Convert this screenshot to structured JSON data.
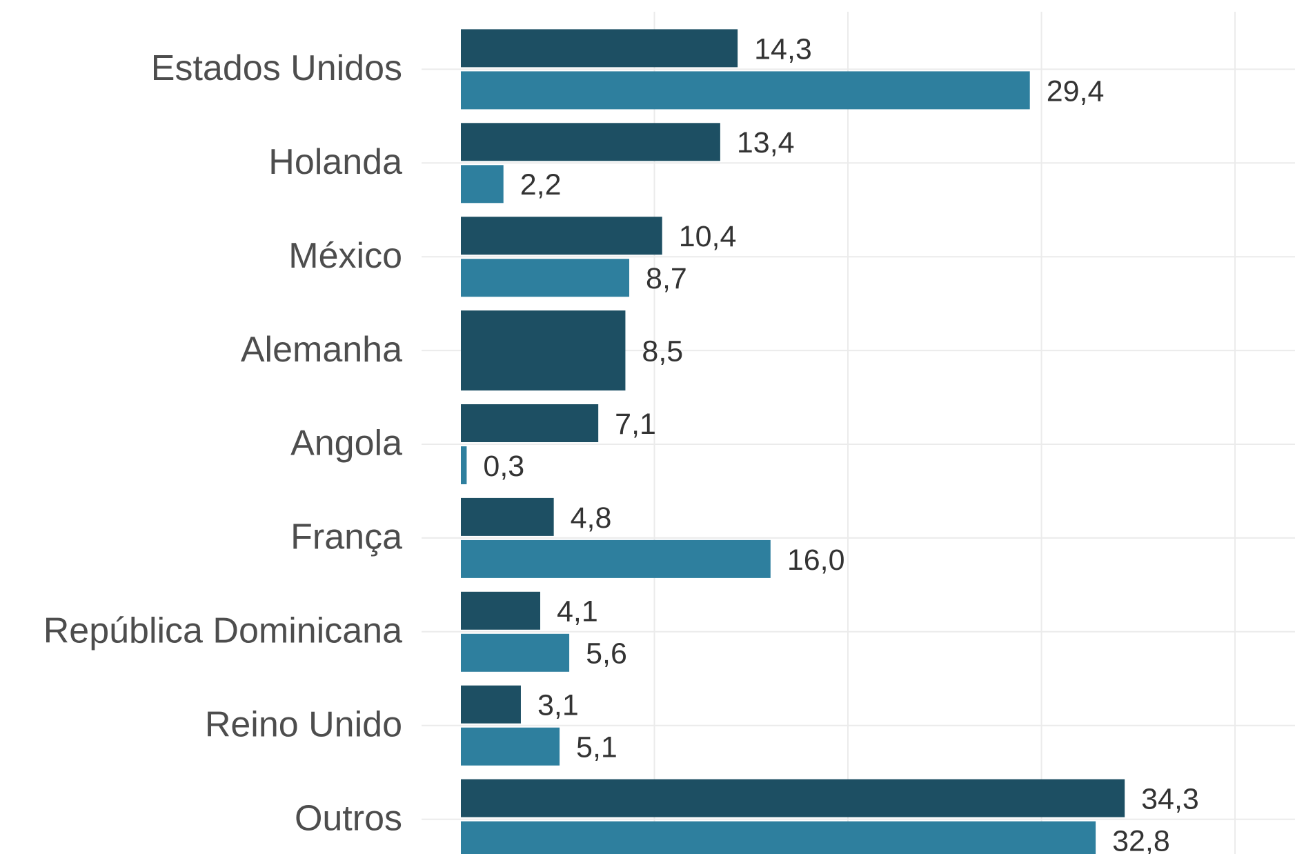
{
  "chart_data": {
    "type": "bar",
    "orientation": "horizontal",
    "categories": [
      "Estados Unidos",
      "Holanda",
      "México",
      "Alemanha",
      "Angola",
      "França",
      "República Dominicana",
      "Reino Unido",
      "Outros"
    ],
    "series": [
      {
        "color": "#1d4f63",
        "values": [
          14.3,
          13.4,
          10.4,
          8.5,
          7.1,
          4.8,
          4.1,
          3.1,
          34.3
        ],
        "value_labels": [
          "14,3",
          "13,4",
          "10,4",
          "8,5",
          "7,1",
          "4,8",
          "4,1",
          "3,1",
          "34,3"
        ]
      },
      {
        "color": "#2e7f9e",
        "values": [
          29.4,
          2.2,
          8.7,
          null,
          0.3,
          16.0,
          5.6,
          5.1,
          32.8
        ],
        "value_labels": [
          "29,4",
          "2,2",
          "8,7",
          null,
          "0,3",
          "16,0",
          "5,6",
          "5,1",
          "32,8"
        ]
      }
    ],
    "xlim": [
      0,
      43.1
    ],
    "xticks": [
      10,
      20,
      30,
      40
    ],
    "xtick_labels": false,
    "grid": true
  }
}
